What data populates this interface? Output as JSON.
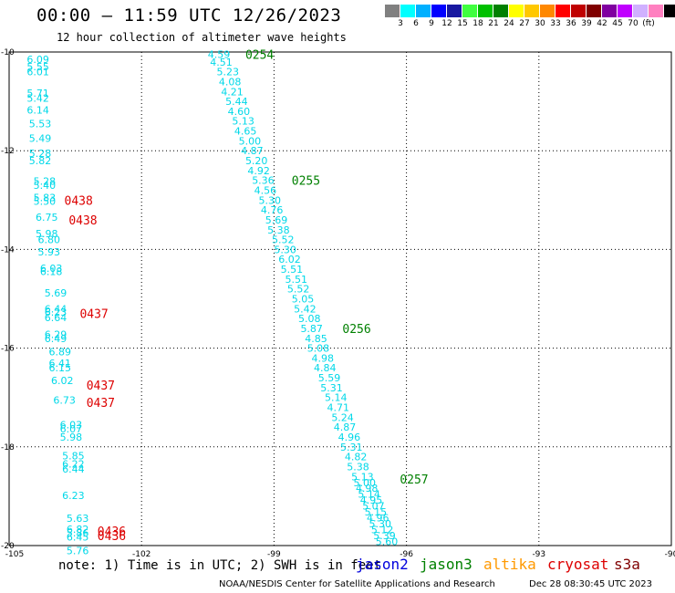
{
  "header": {
    "title": "00:00 – 11:59 UTC 12/26/2023",
    "subtitle": "12 hour collection of altimeter wave heights"
  },
  "color_scale": {
    "colors": [
      "#808080",
      "#00ffff",
      "#00b0ff",
      "#0000ff",
      "#1818a0",
      "#40ff40",
      "#00c000",
      "#008000",
      "#ffff00",
      "#ffc800",
      "#ff8800",
      "#ff0000",
      "#c00000",
      "#800000",
      "#8000a0",
      "#c000ff",
      "#d0b0ff",
      "#ff80c0",
      "#000000"
    ],
    "labels": [
      "3",
      "6",
      "9",
      "12",
      "15",
      "18",
      "21",
      "24",
      "27",
      "30",
      "33",
      "36",
      "39",
      "42",
      "45",
      "70",
      "(ft)"
    ]
  },
  "map": {
    "lon_range": [
      -105,
      -90
    ],
    "lat_range": [
      -20,
      -10
    ],
    "x_ticks": [
      "-105",
      "-102",
      "-99",
      "-96",
      "-93",
      "-90"
    ],
    "y_ticks": [
      "-10",
      "-12",
      "-14",
      "-16",
      "-18",
      "-20"
    ],
    "swh_color": "#00d8e8",
    "tracks": [
      {
        "id": "left-pass",
        "values": [
          {
            "lon": -104.6,
            "lat": -10.15,
            "v": "6.09"
          },
          {
            "lon": -104.6,
            "lat": -10.3,
            "v": "5.55"
          },
          {
            "lon": -104.6,
            "lat": -10.4,
            "v": "6.01"
          },
          {
            "lon": -104.6,
            "lat": -10.83,
            "v": "5.71"
          },
          {
            "lon": -104.6,
            "lat": -10.93,
            "v": "5.42"
          },
          {
            "lon": -104.6,
            "lat": -11.17,
            "v": "6.14"
          },
          {
            "lon": -104.55,
            "lat": -11.45,
            "v": "5.53"
          },
          {
            "lon": -104.55,
            "lat": -11.75,
            "v": "5.49"
          },
          {
            "lon": -104.55,
            "lat": -12.05,
            "v": "5.28"
          },
          {
            "lon": -104.55,
            "lat": -12.2,
            "v": "5.82"
          },
          {
            "lon": -104.45,
            "lat": -12.62,
            "v": "5.28"
          },
          {
            "lon": -104.45,
            "lat": -12.7,
            "v": "5.40"
          },
          {
            "lon": -104.45,
            "lat": -12.95,
            "v": "5.83"
          },
          {
            "lon": -104.45,
            "lat": -13.02,
            "v": "5.50"
          },
          {
            "lon": -104.4,
            "lat": -13.35,
            "v": "6.75"
          },
          {
            "lon": -104.4,
            "lat": -13.68,
            "v": "5.98"
          },
          {
            "lon": -104.35,
            "lat": -13.8,
            "v": "6.80"
          },
          {
            "lon": -104.35,
            "lat": -14.05,
            "v": "5.93"
          },
          {
            "lon": -104.3,
            "lat": -14.38,
            "v": "6.03"
          },
          {
            "lon": -104.3,
            "lat": -14.45,
            "v": "6.18"
          },
          {
            "lon": -104.2,
            "lat": -14.88,
            "v": "5.69"
          },
          {
            "lon": -104.2,
            "lat": -15.2,
            "v": "6.44"
          },
          {
            "lon": -104.2,
            "lat": -15.27,
            "v": "6.23"
          },
          {
            "lon": -104.2,
            "lat": -15.38,
            "v": "6.64"
          },
          {
            "lon": -104.2,
            "lat": -15.72,
            "v": "6.29"
          },
          {
            "lon": -104.2,
            "lat": -15.8,
            "v": "6.49"
          },
          {
            "lon": -104.1,
            "lat": -16.07,
            "v": "6.89"
          },
          {
            "lon": -104.1,
            "lat": -16.3,
            "v": "6.41"
          },
          {
            "lon": -104.1,
            "lat": -16.4,
            "v": "6.15"
          },
          {
            "lon": -104.05,
            "lat": -16.65,
            "v": "6.02"
          },
          {
            "lon": -104.0,
            "lat": -17.05,
            "v": "6.73"
          },
          {
            "lon": -103.85,
            "lat": -17.55,
            "v": "6.03"
          },
          {
            "lon": -103.85,
            "lat": -17.63,
            "v": "6.07"
          },
          {
            "lon": -103.85,
            "lat": -17.8,
            "v": "5.98"
          },
          {
            "lon": -103.8,
            "lat": -18.18,
            "v": "5.85"
          },
          {
            "lon": -103.8,
            "lat": -18.35,
            "v": "6.22"
          },
          {
            "lon": -103.8,
            "lat": -18.45,
            "v": "6.44"
          },
          {
            "lon": -103.8,
            "lat": -18.98,
            "v": "6.23"
          },
          {
            "lon": -103.7,
            "lat": -19.45,
            "v": "5.63"
          },
          {
            "lon": -103.7,
            "lat": -19.67,
            "v": "6.82"
          },
          {
            "lon": -103.7,
            "lat": -19.74,
            "v": "5.86"
          },
          {
            "lon": -103.7,
            "lat": -19.82,
            "v": "6.45"
          },
          {
            "lon": -103.7,
            "lat": -20.1,
            "v": "5.76"
          }
        ],
        "time_labels": [
          {
            "lon": -103.75,
            "lat": -13.0,
            "t": "0438",
            "color": "#dd0000"
          },
          {
            "lon": -103.65,
            "lat": -13.4,
            "t": "0438",
            "color": "#dd0000"
          },
          {
            "lon": -103.4,
            "lat": -15.3,
            "t": "0437",
            "color": "#dd0000"
          },
          {
            "lon": -103.25,
            "lat": -16.75,
            "t": "0437",
            "color": "#dd0000"
          },
          {
            "lon": -103.25,
            "lat": -17.1,
            "t": "0437",
            "color": "#dd0000"
          },
          {
            "lon": -103.0,
            "lat": -19.7,
            "t": "0436",
            "color": "#dd0000"
          },
          {
            "lon": -103.0,
            "lat": -19.8,
            "t": "0436",
            "color": "#dd0000"
          }
        ]
      },
      {
        "id": "diagonal-pass",
        "values": [
          {
            "lon": -100.5,
            "lat": -10.05,
            "v": "4.59"
          },
          {
            "lon": -100.45,
            "lat": -10.2,
            "v": "4.51"
          },
          {
            "lon": -100.3,
            "lat": -10.4,
            "v": "5.23"
          },
          {
            "lon": -100.25,
            "lat": -10.6,
            "v": "4.08"
          },
          {
            "lon": -100.2,
            "lat": -10.8,
            "v": "4.21"
          },
          {
            "lon": -100.1,
            "lat": -11.0,
            "v": "5.44"
          },
          {
            "lon": -100.05,
            "lat": -11.2,
            "v": "4.60"
          },
          {
            "lon": -99.95,
            "lat": -11.4,
            "v": "5.13"
          },
          {
            "lon": -99.9,
            "lat": -11.6,
            "v": "4.65"
          },
          {
            "lon": -99.8,
            "lat": -11.8,
            "v": "5.00"
          },
          {
            "lon": -99.75,
            "lat": -12.0,
            "v": "4.87"
          },
          {
            "lon": -99.65,
            "lat": -12.2,
            "v": "5.20"
          },
          {
            "lon": -99.6,
            "lat": -12.4,
            "v": "4.92"
          },
          {
            "lon": -99.5,
            "lat": -12.6,
            "v": "5.36"
          },
          {
            "lon": -99.45,
            "lat": -12.8,
            "v": "4.56"
          },
          {
            "lon": -99.35,
            "lat": -13.0,
            "v": "5.30"
          },
          {
            "lon": -99.3,
            "lat": -13.2,
            "v": "4.76"
          },
          {
            "lon": -99.2,
            "lat": -13.4,
            "v": "5.69"
          },
          {
            "lon": -99.15,
            "lat": -13.6,
            "v": "5.38"
          },
          {
            "lon": -99.05,
            "lat": -13.8,
            "v": "5.52"
          },
          {
            "lon": -99.0,
            "lat": -14.0,
            "v": "5.30"
          },
          {
            "lon": -98.9,
            "lat": -14.2,
            "v": "6.02"
          },
          {
            "lon": -98.85,
            "lat": -14.4,
            "v": "5.51"
          },
          {
            "lon": -98.75,
            "lat": -14.6,
            "v": "5.51"
          },
          {
            "lon": -98.7,
            "lat": -14.8,
            "v": "5.52"
          },
          {
            "lon": -98.6,
            "lat": -15.0,
            "v": "5.05"
          },
          {
            "lon": -98.55,
            "lat": -15.2,
            "v": "5.42"
          },
          {
            "lon": -98.45,
            "lat": -15.4,
            "v": "5.08"
          },
          {
            "lon": -98.4,
            "lat": -15.6,
            "v": "5.87"
          },
          {
            "lon": -98.3,
            "lat": -15.8,
            "v": "4.85"
          },
          {
            "lon": -98.25,
            "lat": -16.0,
            "v": "5.08"
          },
          {
            "lon": -98.15,
            "lat": -16.2,
            "v": "4.98"
          },
          {
            "lon": -98.1,
            "lat": -16.4,
            "v": "4.84"
          },
          {
            "lon": -98.0,
            "lat": -16.6,
            "v": "5.59"
          },
          {
            "lon": -97.95,
            "lat": -16.8,
            "v": "5.31"
          },
          {
            "lon": -97.85,
            "lat": -17.0,
            "v": "5.14"
          },
          {
            "lon": -97.8,
            "lat": -17.2,
            "v": "4.71"
          },
          {
            "lon": -97.7,
            "lat": -17.4,
            "v": "5.24"
          },
          {
            "lon": -97.65,
            "lat": -17.6,
            "v": "4.87"
          },
          {
            "lon": -97.55,
            "lat": -17.8,
            "v": "4.96"
          },
          {
            "lon": -97.5,
            "lat": -18.0,
            "v": "5.31"
          },
          {
            "lon": -97.4,
            "lat": -18.2,
            "v": "4.82"
          },
          {
            "lon": -97.35,
            "lat": -18.4,
            "v": "5.38"
          },
          {
            "lon": -97.25,
            "lat": -18.6,
            "v": "5.13"
          },
          {
            "lon": -97.2,
            "lat": -18.72,
            "v": "5.00"
          },
          {
            "lon": -97.15,
            "lat": -18.84,
            "v": "4.98"
          },
          {
            "lon": -97.1,
            "lat": -18.96,
            "v": "5.14"
          },
          {
            "lon": -97.05,
            "lat": -19.08,
            "v": "4.95"
          },
          {
            "lon": -97.0,
            "lat": -19.2,
            "v": "5.07"
          },
          {
            "lon": -96.95,
            "lat": -19.32,
            "v": "5.15"
          },
          {
            "lon": -96.9,
            "lat": -19.44,
            "v": "4.96"
          },
          {
            "lon": -96.85,
            "lat": -19.56,
            "v": "5.30"
          },
          {
            "lon": -96.8,
            "lat": -19.68,
            "v": "5.12"
          },
          {
            "lon": -96.75,
            "lat": -19.8,
            "v": "5.39"
          },
          {
            "lon": -96.7,
            "lat": -19.92,
            "v": "5.60"
          }
        ],
        "time_labels": [
          {
            "lon": -99.65,
            "lat": -10.05,
            "t": "0254",
            "color": "#008000"
          },
          {
            "lon": -98.6,
            "lat": -12.6,
            "t": "0255",
            "color": "#008000"
          },
          {
            "lon": -97.45,
            "lat": -15.6,
            "t": "0256",
            "color": "#008000"
          },
          {
            "lon": -96.15,
            "lat": -18.65,
            "t": "0257",
            "color": "#008000"
          }
        ]
      }
    ]
  },
  "footer": {
    "note": "note:  1) Time is in UTC; 2) SWH is in feet",
    "missions": [
      {
        "name": "jason2",
        "color": "#0000dd"
      },
      {
        "name": "jason3",
        "color": "#008000"
      },
      {
        "name": "altika",
        "color": "#ff9900"
      },
      {
        "name": "cryosat",
        "color": "#dd0000"
      },
      {
        "name": "s3a",
        "color": "#800000"
      }
    ],
    "credit": "NOAA/NESDIS Center for Satellite Applications and Research",
    "timestamp": "Dec 28 08:30:45 UTC 2023"
  }
}
